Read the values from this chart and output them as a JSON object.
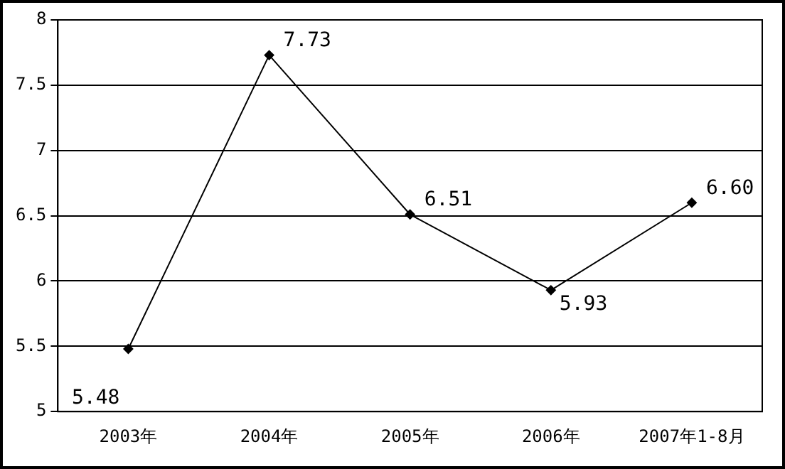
{
  "chart_data": {
    "type": "line",
    "categories": [
      "2003年",
      "2004年",
      "2005年",
      "2006年",
      "2007年1-8月"
    ],
    "series": [
      {
        "color": "#000000",
        "values": [
          5.48,
          7.73,
          6.51,
          5.93,
          6.6
        ],
        "value_labels": [
          "5.48",
          "7.73",
          "6.51",
          "5.93",
          "6.60"
        ]
      }
    ],
    "ylim": [
      5,
      8
    ],
    "yticks": [
      5,
      5.5,
      6,
      6.5,
      7,
      7.5,
      8
    ],
    "grid": "y",
    "legend": false,
    "marker": "diamond",
    "line_style": "solid"
  }
}
